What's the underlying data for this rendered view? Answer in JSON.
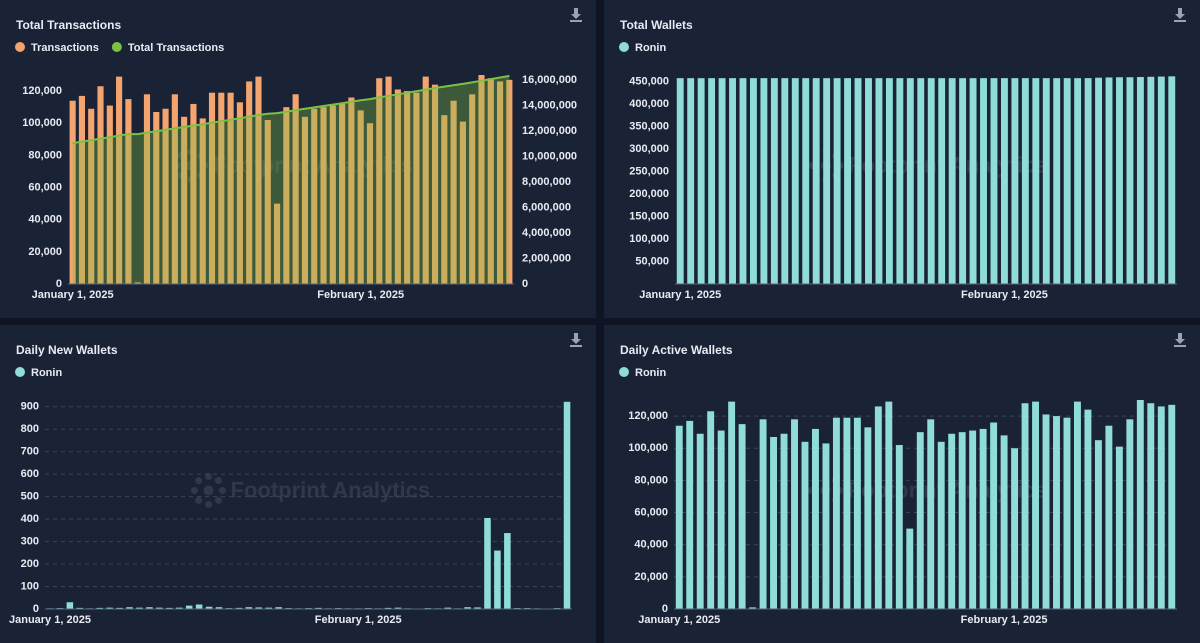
{
  "chart_data": [
    {
      "type": "bar",
      "title": "Total Transactions",
      "watermark": "Footprint Analytics",
      "categories": [
        "January 1, 2025",
        null,
        null,
        null,
        null,
        null,
        null,
        null,
        null,
        null,
        null,
        null,
        null,
        null,
        null,
        null,
        null,
        null,
        null,
        null,
        null,
        null,
        null,
        null,
        null,
        null,
        null,
        null,
        null,
        null,
        null,
        "February 1, 2025",
        null,
        null,
        null,
        null,
        null,
        null,
        null,
        null,
        null,
        null,
        null,
        null,
        null,
        null,
        null,
        null
      ],
      "series": [
        {
          "name": "Transactions",
          "color": "#f4a46e",
          "values": [
            114000,
            117000,
            109000,
            123000,
            111000,
            129000,
            115000,
            1000,
            118000,
            107000,
            109000,
            118000,
            104000,
            112000,
            103000,
            119000,
            119000,
            119000,
            113000,
            126000,
            129000,
            102000,
            50000,
            110000,
            118000,
            104000,
            109000,
            110000,
            111000,
            112000,
            116000,
            108000,
            100000,
            128000,
            129000,
            121000,
            120000,
            119000,
            129000,
            124000,
            105000,
            114000,
            101000,
            118000,
            130000,
            128000,
            126000,
            127000
          ]
        },
        {
          "name": "Total Transactions",
          "color": "#7dc142",
          "type": "line",
          "axis": "y2",
          "values": [
            11060000,
            11177000,
            11286000,
            11409000,
            11520000,
            11649000,
            11764000,
            11765000,
            11883000,
            11990000,
            12099000,
            12217000,
            12321000,
            12433000,
            12536000,
            12655000,
            12774000,
            12893000,
            13006000,
            13132000,
            13261000,
            13363000,
            13413000,
            13523000,
            13641000,
            13745000,
            13854000,
            13964000,
            14075000,
            14187000,
            14303000,
            14411000,
            14511000,
            14639000,
            14768000,
            14889000,
            15009000,
            15128000,
            15257000,
            15381000,
            15486000,
            15600000,
            15701000,
            15819000,
            15949000,
            16077000,
            16203000,
            16330000
          ]
        }
      ],
      "ylim": [
        0,
        130000
      ],
      "yticks": [
        0,
        {
          "value": 20000,
          "label": "20,000"
        },
        {
          "value": 40000,
          "label": "40,000"
        },
        {
          "value": 60000,
          "label": "60,000"
        },
        {
          "value": 80000,
          "label": "80,000"
        },
        {
          "value": 100000,
          "label": "100,000"
        },
        {
          "value": 120000,
          "label": "120,000"
        }
      ],
      "y2lim": [
        0,
        16400000
      ],
      "y2ticks": [
        0,
        {
          "value": 2000000,
          "label": "2,000,000"
        },
        {
          "value": 4000000,
          "label": "4,000,000"
        },
        {
          "value": 6000000,
          "label": "6,000,000"
        },
        {
          "value": 8000000,
          "label": "8,000,000"
        },
        {
          "value": 10000000,
          "label": "10,000,000"
        },
        {
          "value": 12000000,
          "label": "12,000,000"
        },
        {
          "value": 14000000,
          "label": "14,000,000"
        },
        {
          "value": 16000000,
          "label": "16,000,000"
        }
      ],
      "grid": false
    },
    {
      "type": "bar",
      "title": "Total Wallets",
      "watermark": "Footprint Analytics",
      "categories": [
        "January 1, 2025",
        null,
        null,
        null,
        null,
        null,
        null,
        null,
        null,
        null,
        null,
        null,
        null,
        null,
        null,
        null,
        null,
        null,
        null,
        null,
        null,
        null,
        null,
        null,
        null,
        null,
        null,
        null,
        null,
        null,
        null,
        "February 1, 2025",
        null,
        null,
        null,
        null,
        null,
        null,
        null,
        null,
        null,
        null,
        null,
        null,
        null,
        null,
        null,
        null
      ],
      "series": [
        {
          "name": "Ronin",
          "color": "#8fdcd9",
          "values": [
            458000,
            458000,
            458000,
            458000,
            458000,
            458000,
            458000,
            458000,
            458000,
            458000,
            458000,
            458000,
            458000,
            458000,
            458000,
            458000,
            458000,
            458000,
            458000,
            458000,
            458000,
            458000,
            458000,
            458000,
            458000,
            458000,
            458000,
            458000,
            458000,
            458000,
            458000,
            458000,
            458000,
            458000,
            458000,
            458000,
            458000,
            458000,
            458000,
            458000,
            459000,
            459500,
            460000,
            460000,
            460500,
            461000,
            461500,
            462000
          ]
        }
      ],
      "ylim": [
        0,
        465000
      ],
      "yticks": [
        {
          "value": 50000,
          "label": "50,000"
        },
        {
          "value": 100000,
          "label": "100,000"
        },
        {
          "value": 150000,
          "label": "150,000"
        },
        {
          "value": 200000,
          "label": "200,000"
        },
        {
          "value": 250000,
          "label": "250,000"
        },
        {
          "value": 300000,
          "label": "300,000"
        },
        {
          "value": 350000,
          "label": "350,000"
        },
        {
          "value": 400000,
          "label": "400,000"
        },
        {
          "value": 450000,
          "label": "450,000"
        }
      ],
      "grid": false
    },
    {
      "type": "bar",
      "title": "Daily New Wallets",
      "watermark": "Footprint Analytics",
      "categories": [
        "January 1, 2025",
        null,
        null,
        null,
        null,
        null,
        null,
        null,
        null,
        null,
        null,
        null,
        null,
        null,
        null,
        null,
        null,
        null,
        null,
        null,
        null,
        null,
        null,
        null,
        null,
        null,
        null,
        null,
        null,
        null,
        null,
        "February 1, 2025",
        null,
        null,
        null,
        null,
        null,
        null,
        null,
        null,
        null,
        null,
        null,
        null,
        null,
        null,
        null,
        null,
        null,
        null,
        null,
        null,
        null
      ],
      "series": [
        {
          "name": "Ronin",
          "color": "#8fdcd9",
          "values": [
            3,
            4,
            30,
            5,
            3,
            5,
            6,
            5,
            8,
            6,
            8,
            6,
            5,
            6,
            15,
            20,
            10,
            8,
            4,
            5,
            8,
            7,
            6,
            8,
            4,
            3,
            4,
            5,
            3,
            4,
            3,
            3,
            4,
            3,
            5,
            6,
            3,
            2,
            4,
            3,
            6,
            3,
            8,
            7,
            405,
            260,
            338,
            4,
            4,
            3,
            2,
            4,
            922
          ]
        }
      ],
      "ylim": [
        0,
        930
      ],
      "yticks": [
        0,
        100,
        200,
        300,
        400,
        500,
        600,
        700,
        800,
        900
      ],
      "grid": true
    },
    {
      "type": "bar",
      "title": "Daily Active Wallets",
      "watermark": "Footprint Analytics",
      "categories": [
        "January 1, 2025",
        null,
        null,
        null,
        null,
        null,
        null,
        null,
        null,
        null,
        null,
        null,
        null,
        null,
        null,
        null,
        null,
        null,
        null,
        null,
        null,
        null,
        null,
        null,
        null,
        null,
        null,
        null,
        null,
        null,
        null,
        "February 1, 2025",
        null,
        null,
        null,
        null,
        null,
        null,
        null,
        null,
        null,
        null,
        null,
        null,
        null,
        null,
        null,
        null
      ],
      "series": [
        {
          "name": "Ronin",
          "color": "#8fdcd9",
          "values": [
            114000,
            117000,
            109000,
            123000,
            111000,
            129000,
            115000,
            1000,
            118000,
            107000,
            109000,
            118000,
            104000,
            112000,
            103000,
            119000,
            119000,
            119000,
            113000,
            126000,
            129000,
            102000,
            50000,
            110000,
            118000,
            104000,
            109000,
            110000,
            111000,
            112000,
            116000,
            108000,
            100000,
            128000,
            129000,
            121000,
            120000,
            119000,
            129000,
            124000,
            105000,
            114000,
            101000,
            118000,
            130000,
            128000,
            126000,
            127000
          ]
        }
      ],
      "ylim": [
        0,
        130000
      ],
      "yticks": [
        0,
        {
          "value": 20000,
          "label": "20,000"
        },
        {
          "value": 40000,
          "label": "40,000"
        },
        {
          "value": 60000,
          "label": "60,000"
        },
        {
          "value": 80000,
          "label": "80,000"
        },
        {
          "value": 100000,
          "label": "100,000"
        },
        {
          "value": 120000,
          "label": "120,000"
        }
      ],
      "grid": true
    }
  ]
}
